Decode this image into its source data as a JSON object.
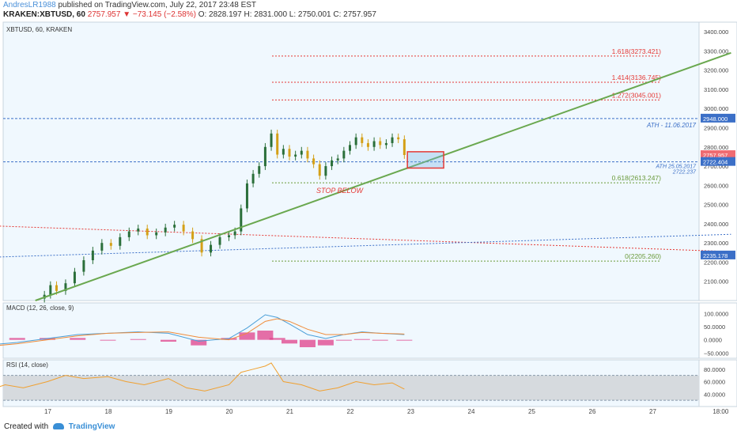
{
  "header": {
    "author": "AndresLR1988",
    "published": "published on TradingView.com, July 22, 2017 23:48 EST",
    "symbol": "KRAKEN:XBTUSD, 60",
    "last": "2757.957",
    "change": "▼ −73.145 (−2.58%)",
    "ohlc": "O: 2828.197  H: 2831.000  L: 2750.001  C: 2757.957"
  },
  "footer": {
    "created_with": "Created with",
    "brand": "TradingView"
  },
  "colors": {
    "background": "#f0f8fe",
    "bull": "#4caf50",
    "bear": "#ef6c72",
    "candle_up": "#2b6f3a",
    "candle_down": "#d4a017",
    "trend": "#6aa84f",
    "fib_red": "#e53935",
    "fib_green": "#6a9a3a",
    "blue_dotted": "#3b6fc7",
    "macd": "#4a9fd8",
    "signal": "#f08c3a",
    "hist_pos": "#e0408a",
    "rsi": "#f0a030"
  },
  "chart_data": [
    {
      "type": "candlestick",
      "title": "XBTUSD, 60, KRAKEN",
      "ylim": [
        2000,
        3450
      ],
      "y_ticks": [
        "3400.000",
        "3300.000",
        "3200.000",
        "3100.000",
        "3000.000",
        "2900.000",
        "2800.000",
        "2700.000",
        "2600.000",
        "2500.000",
        "2400.000",
        "2300.000",
        "2200.000",
        "2100.000"
      ],
      "x_ticks": [
        "17",
        "18",
        "19",
        "20",
        "21",
        "22",
        "23",
        "24",
        "25",
        "26",
        "27",
        "18:00"
      ],
      "price_labels": [
        {
          "value": 2948.0,
          "text": "2948.000",
          "color": "#3b6fc7"
        },
        {
          "value": 2757.957,
          "text": "2757.957",
          "color": "#ef6c72"
        },
        {
          "value": 2722.404,
          "text": "2722.404",
          "color": "#3b6fc7"
        },
        {
          "value": 2235.178,
          "text": "2235.178",
          "color": "#3b6fc7"
        }
      ],
      "fib_levels": [
        {
          "ratio": "1.618",
          "value": 3273.421,
          "label": "1.618(3273.421)",
          "color": "#e53935"
        },
        {
          "ratio": "1.414",
          "value": 3136.745,
          "label": "1.414(3136.745)",
          "color": "#e53935"
        },
        {
          "ratio": "1.272",
          "value": 3045.001,
          "label": "1.272(3045.001)",
          "color": "#e53935"
        },
        {
          "ratio": "0.618",
          "value": 2613.247,
          "label": "0.618(2613.247)",
          "color": "#6a9a3a"
        },
        {
          "ratio": "0",
          "value": 2205.26,
          "label": "0(2205.260)",
          "color": "#6a9a3a"
        }
      ],
      "annotations": {
        "ath_top": "ATH - 11.06.2017",
        "ath_mid": "ATH 25.05.2017",
        "ath_mid_value": "2722.237",
        "stop": "STOP BELOW"
      },
      "ath_top_value": 2948.0,
      "ath_mid_value_num": 2722.237,
      "trendline": [
        [
          16.8,
          2000
        ],
        [
          28.3,
          3290
        ]
      ],
      "red_channel": [
        [
          16.0,
          2390
        ],
        [
          28.3,
          2255
        ]
      ],
      "blue_channel": [
        [
          16.0,
          2225
        ],
        [
          28.3,
          2345
        ]
      ],
      "stop_box": {
        "x0": 22.95,
        "x1": 23.55,
        "y0": 2690,
        "y1": 2775
      },
      "candles": [
        {
          "x": 16.95,
          "c": 2030
        },
        {
          "x": 17.05,
          "c": 2080
        },
        {
          "x": 17.15,
          "c": 2050
        },
        {
          "x": 17.3,
          "c": 2090
        },
        {
          "x": 17.45,
          "c": 2150
        },
        {
          "x": 17.6,
          "c": 2210
        },
        {
          "x": 17.75,
          "c": 2260
        },
        {
          "x": 17.9,
          "c": 2300
        },
        {
          "x": 18.05,
          "c": 2285
        },
        {
          "x": 18.2,
          "c": 2330
        },
        {
          "x": 18.35,
          "c": 2360
        },
        {
          "x": 18.5,
          "c": 2375
        },
        {
          "x": 18.65,
          "c": 2340
        },
        {
          "x": 18.8,
          "c": 2355
        },
        {
          "x": 18.95,
          "c": 2380
        },
        {
          "x": 19.1,
          "c": 2395
        },
        {
          "x": 19.25,
          "c": 2360
        },
        {
          "x": 19.4,
          "c": 2320
        },
        {
          "x": 19.55,
          "c": 2250
        },
        {
          "x": 19.7,
          "c": 2290
        },
        {
          "x": 19.85,
          "c": 2330
        },
        {
          "x": 20.0,
          "c": 2340
        },
        {
          "x": 20.1,
          "c": 2360
        },
        {
          "x": 20.2,
          "c": 2480
        },
        {
          "x": 20.3,
          "c": 2610
        },
        {
          "x": 20.4,
          "c": 2660
        },
        {
          "x": 20.5,
          "c": 2700
        },
        {
          "x": 20.6,
          "c": 2800
        },
        {
          "x": 20.7,
          "c": 2870
        },
        {
          "x": 20.8,
          "c": 2760
        },
        {
          "x": 20.9,
          "c": 2790
        },
        {
          "x": 21.0,
          "c": 2750
        },
        {
          "x": 21.1,
          "c": 2760
        },
        {
          "x": 21.2,
          "c": 2780
        },
        {
          "x": 21.3,
          "c": 2740
        },
        {
          "x": 21.4,
          "c": 2710
        },
        {
          "x": 21.5,
          "c": 2650
        },
        {
          "x": 21.6,
          "c": 2700
        },
        {
          "x": 21.7,
          "c": 2730
        },
        {
          "x": 21.8,
          "c": 2740
        },
        {
          "x": 21.9,
          "c": 2780
        },
        {
          "x": 22.0,
          "c": 2810
        },
        {
          "x": 22.1,
          "c": 2850
        },
        {
          "x": 22.2,
          "c": 2820
        },
        {
          "x": 22.3,
          "c": 2800
        },
        {
          "x": 22.4,
          "c": 2830
        },
        {
          "x": 22.5,
          "c": 2810
        },
        {
          "x": 22.6,
          "c": 2820
        },
        {
          "x": 22.7,
          "c": 2850
        },
        {
          "x": 22.8,
          "c": 2840
        },
        {
          "x": 22.9,
          "c": 2758
        }
      ]
    },
    {
      "type": "line",
      "title": "MACD (12, 26, close, 9)",
      "ylim": [
        -70,
        140
      ],
      "y_ticks": [
        "100.0000",
        "50.0000",
        "0.0000",
        "−50.0000"
      ],
      "x": [
        16.0,
        16.5,
        17.0,
        17.5,
        18.0,
        18.5,
        19.0,
        19.5,
        20.0,
        20.3,
        20.6,
        20.8,
        21.0,
        21.3,
        21.6,
        21.9,
        22.2,
        22.5,
        22.9
      ],
      "series": [
        {
          "values": [
            -20,
            -10,
            5,
            20,
            25,
            30,
            25,
            -5,
            5,
            45,
            95,
            85,
            60,
            20,
            5,
            20,
            30,
            25,
            20
          ]
        },
        {
          "values": [
            -25,
            -15,
            0,
            15,
            25,
            28,
            30,
            10,
            0,
            25,
            70,
            80,
            70,
            40,
            20,
            20,
            28,
            25,
            22
          ]
        }
      ]
    },
    {
      "type": "line",
      "title": "RSI (14, close)",
      "ylim": [
        20,
        95
      ],
      "y_ticks": [
        "80.0000",
        "60.0000",
        "40.0000"
      ],
      "band": [
        30,
        70
      ],
      "x": [
        16.0,
        16.3,
        16.6,
        17.0,
        17.3,
        17.6,
        18.0,
        18.3,
        18.6,
        19.0,
        19.3,
        19.6,
        20.0,
        20.2,
        20.4,
        20.6,
        20.7,
        20.9,
        21.2,
        21.5,
        21.8,
        22.1,
        22.4,
        22.7,
        22.9
      ],
      "values": [
        45,
        55,
        50,
        60,
        70,
        65,
        68,
        60,
        55,
        65,
        50,
        45,
        55,
        75,
        80,
        85,
        90,
        60,
        55,
        45,
        50,
        60,
        55,
        58,
        48
      ]
    }
  ]
}
